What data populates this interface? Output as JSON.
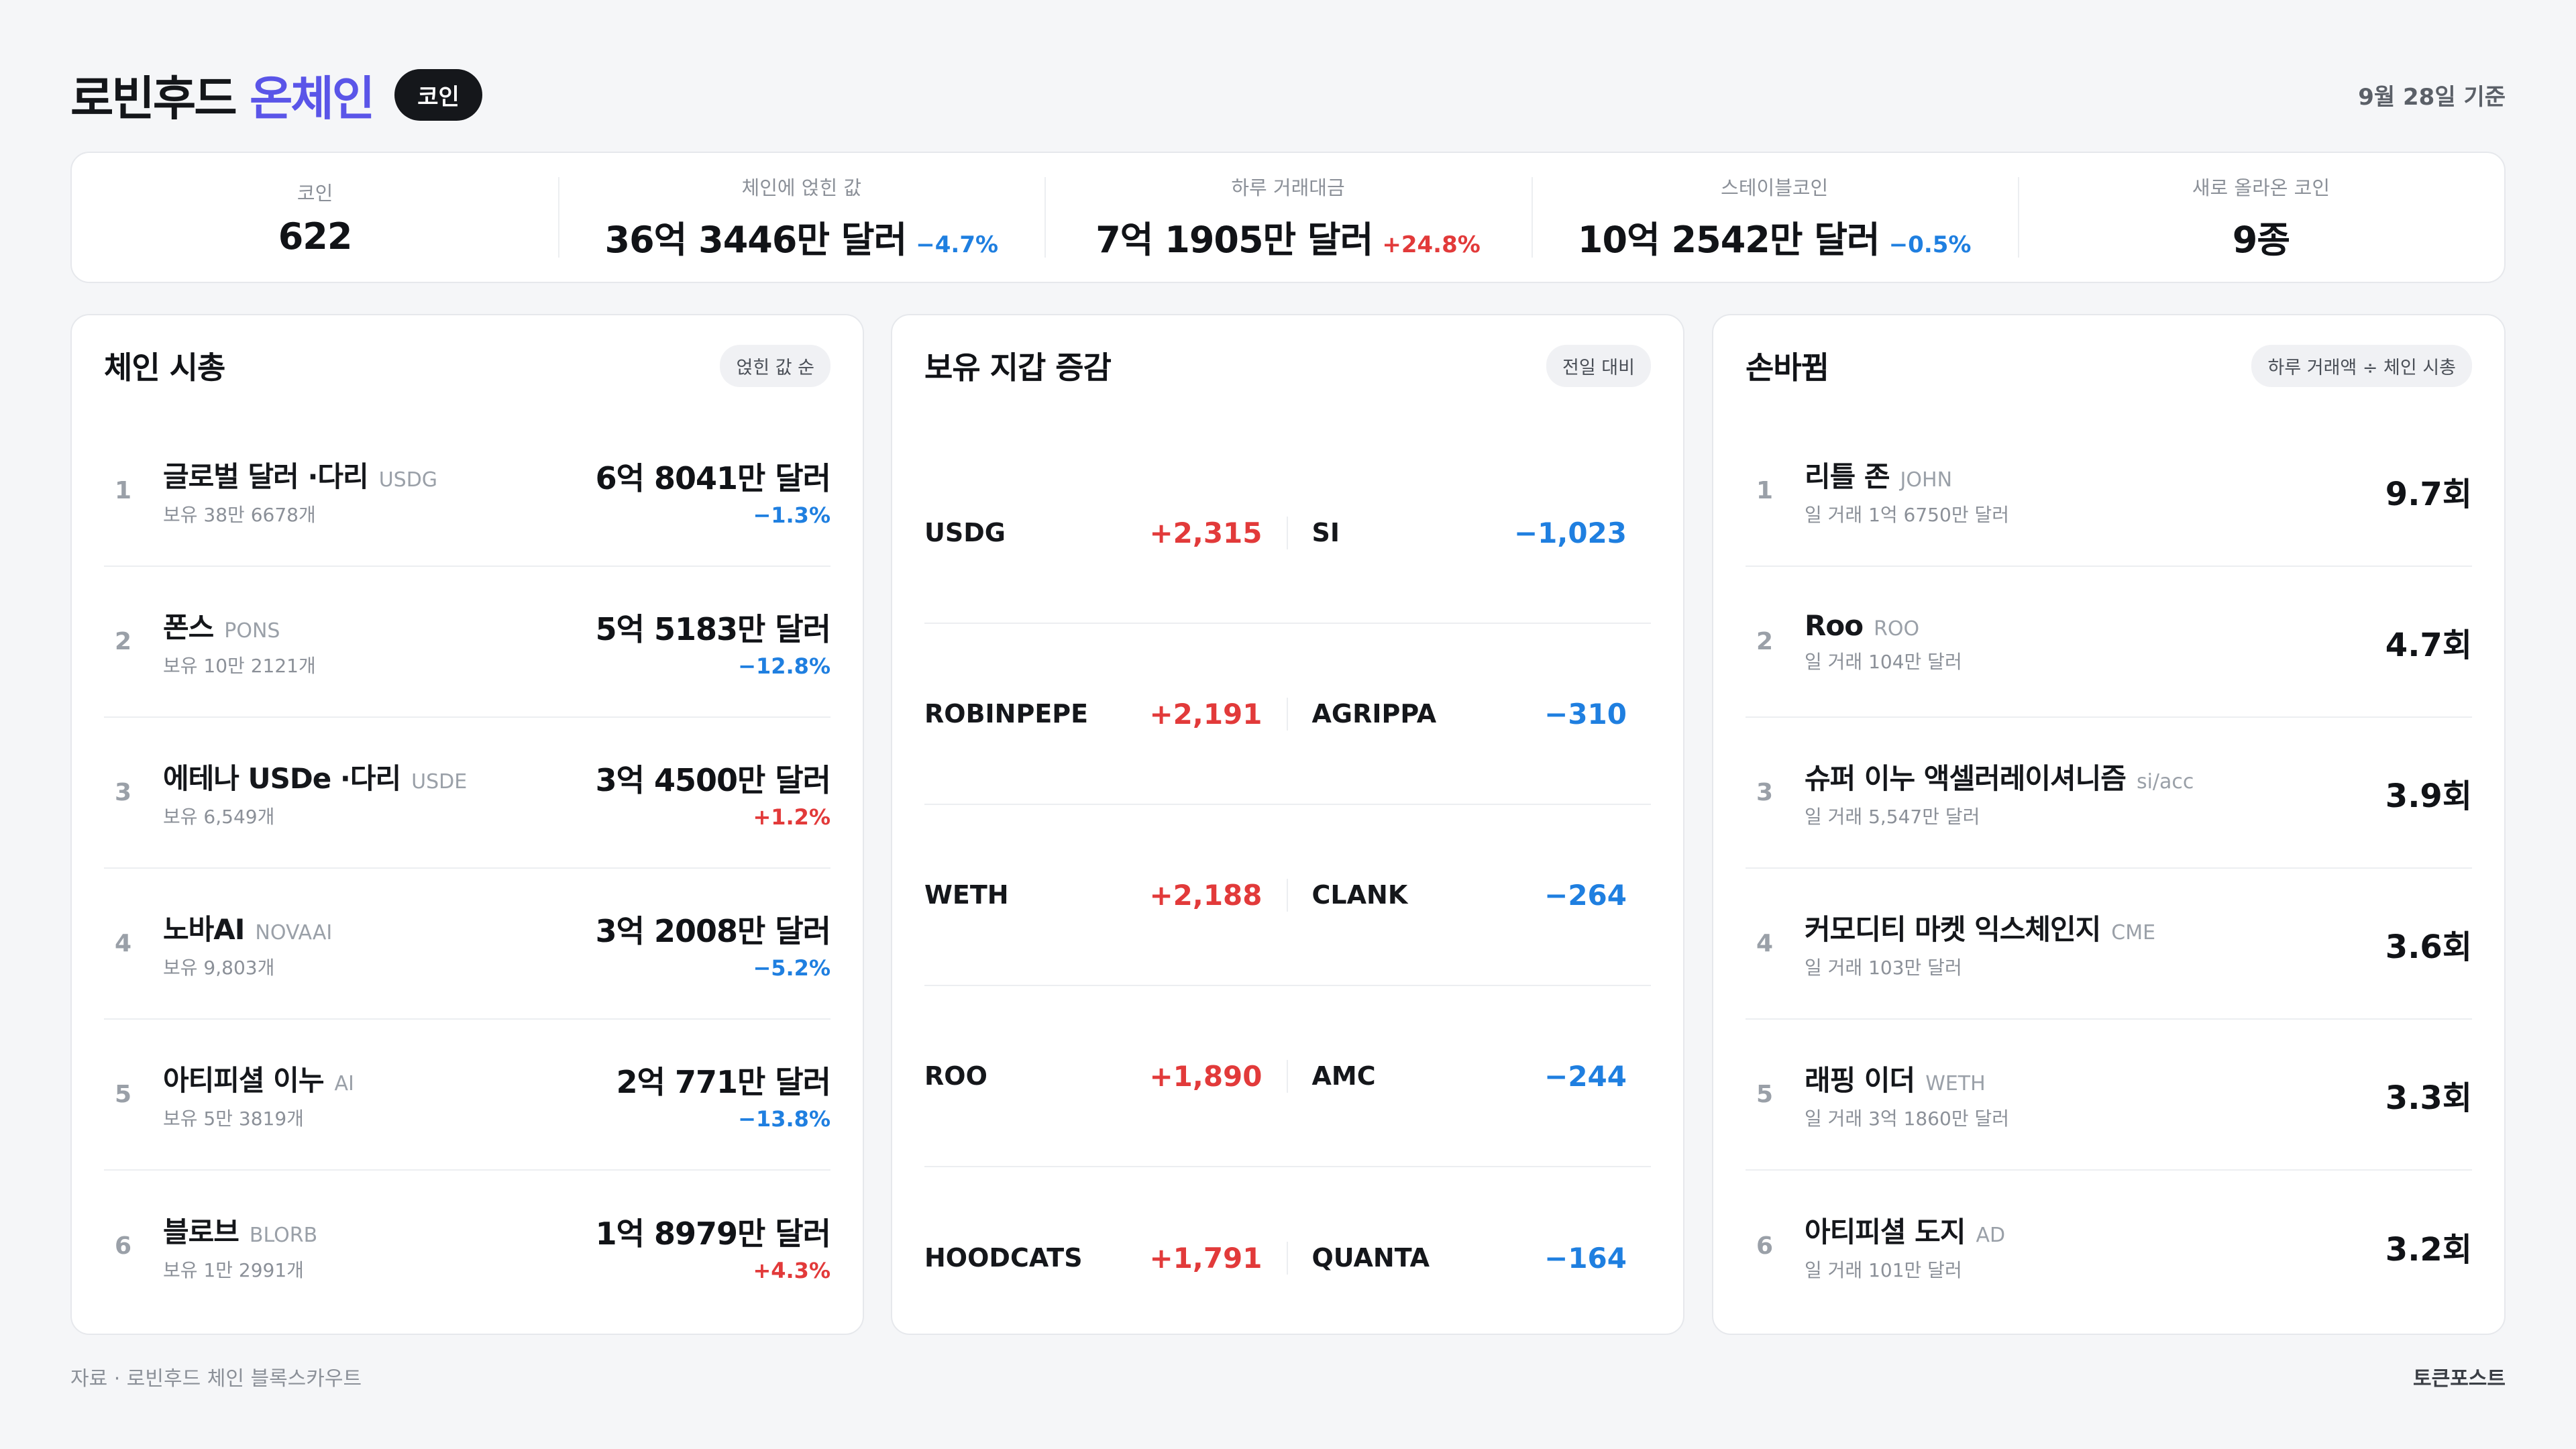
{
  "header": {
    "title_main": "로빈후드",
    "title_accent": "온체인",
    "badge": "코인",
    "date": "9월 28일 기준"
  },
  "stats": [
    {
      "label": "코인",
      "value": "622",
      "change": "",
      "direction": ""
    },
    {
      "label": "체인에 얹힌 값",
      "value": "36억 3446만 달러",
      "change": "−4.7%",
      "direction": "neg"
    },
    {
      "label": "하루 거래대금",
      "value": "7억 1905만 달러",
      "change": "+24.8%",
      "direction": "pos"
    },
    {
      "label": "스테이블코인",
      "value": "10억 2542만 달러",
      "change": "−0.5%",
      "direction": "neg"
    },
    {
      "label": "새로 올라온 코인",
      "value": "9종",
      "change": "",
      "direction": ""
    }
  ],
  "chain_market": {
    "title": "체인 시총",
    "chip": "얹힌 값 순",
    "rows": [
      {
        "rank": "1",
        "name": "글로벌 달러 ·다리",
        "ticker": "USDG",
        "sub": "보유 38만 6678개",
        "value": "6억 8041만 달러",
        "change": "−1.3%",
        "direction": "neg"
      },
      {
        "rank": "2",
        "name": "폰스",
        "ticker": "PONS",
        "sub": "보유 10만 2121개",
        "value": "5억 5183만 달러",
        "change": "−12.8%",
        "direction": "neg"
      },
      {
        "rank": "3",
        "name": "에테나 USDe ·다리",
        "ticker": "USDE",
        "sub": "보유 6,549개",
        "value": "3억 4500만 달러",
        "change": "+1.2%",
        "direction": "pos"
      },
      {
        "rank": "4",
        "name": "노바AI",
        "ticker": "NOVAAI",
        "sub": "보유 9,803개",
        "value": "3억 2008만 달러",
        "change": "−5.2%",
        "direction": "neg"
      },
      {
        "rank": "5",
        "name": "아티피셜 이누",
        "ticker": "AI",
        "sub": "보유 5만 3819개",
        "value": "2억 771만 달러",
        "change": "−13.8%",
        "direction": "neg"
      },
      {
        "rank": "6",
        "name": "블로브",
        "ticker": "BLORB",
        "sub": "보유 1만 2991개",
        "value": "1억 8979만 달러",
        "change": "+4.3%",
        "direction": "pos"
      }
    ]
  },
  "wallets": {
    "title": "보유 지갑 증감",
    "chip": "전일 대비",
    "rows": [
      {
        "up_ticker": "USDG",
        "up_value": "+2,315",
        "down_ticker": "SI",
        "down_value": "−1,023"
      },
      {
        "up_ticker": "ROBINPEPE",
        "up_value": "+2,191",
        "down_ticker": "AGRIPPA",
        "down_value": "−310"
      },
      {
        "up_ticker": "WETH",
        "up_value": "+2,188",
        "down_ticker": "CLANK",
        "down_value": "−264"
      },
      {
        "up_ticker": "ROO",
        "up_value": "+1,890",
        "down_ticker": "AMC",
        "down_value": "−244"
      },
      {
        "up_ticker": "HOODCATS",
        "up_value": "+1,791",
        "down_ticker": "QUANTA",
        "down_value": "−164"
      }
    ]
  },
  "turnover": {
    "title": "손바뀜",
    "chip": "하루 거래액 ÷ 체인 시총",
    "rows": [
      {
        "rank": "1",
        "name": "리틀 존",
        "ticker": "JOHN",
        "sub": "일 거래 1억 6750만 달러",
        "value": "9.7회"
      },
      {
        "rank": "2",
        "name": "Roo",
        "ticker": "ROO",
        "sub": "일 거래 104만 달러",
        "value": "4.7회"
      },
      {
        "rank": "3",
        "name": "슈퍼 이누 액셀러레이셔니즘",
        "ticker": "si/acc",
        "sub": "일 거래 5,547만 달러",
        "value": "3.9회"
      },
      {
        "rank": "4",
        "name": "커모디티 마켓 익스체인지",
        "ticker": "CME",
        "sub": "일 거래 103만 달러",
        "value": "3.6회"
      },
      {
        "rank": "5",
        "name": "래핑 이더",
        "ticker": "WETH",
        "sub": "일 거래 3억 1860만 달러",
        "value": "3.3회"
      },
      {
        "rank": "6",
        "name": "아티피셜 도지",
        "ticker": "AD",
        "sub": "일 거래 101만 달러",
        "value": "3.2회"
      }
    ]
  },
  "footer": {
    "source": "자료 · 로빈후드 체인 블록스카우트",
    "brand": "토큰포스트"
  },
  "colors": {
    "accent": "#5a55e8",
    "positive": "#e23a3a",
    "negative": "#1f7fe0"
  }
}
